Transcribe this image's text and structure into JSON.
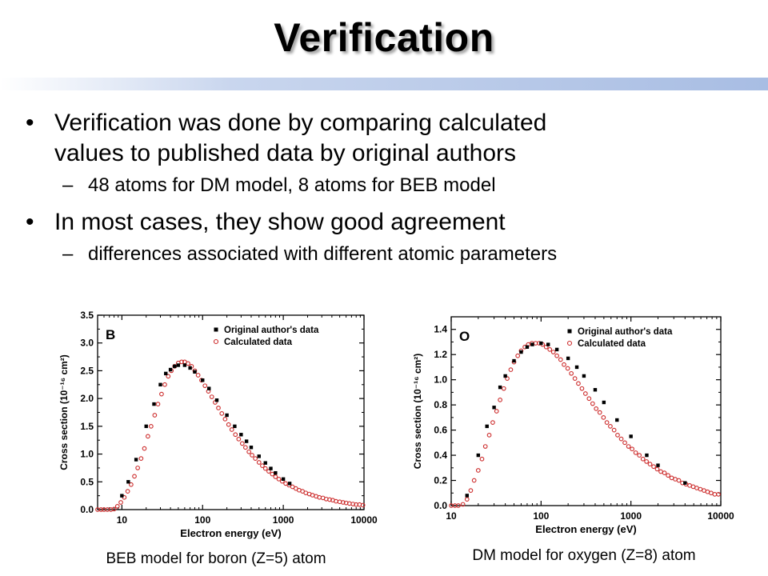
{
  "slide": {
    "title": "Verification",
    "bullets": [
      {
        "text": "Verification was done by comparing calculated values to published data by original authors",
        "line1": "Verification was done by comparing calculated",
        "line2": "values to published data by original authors",
        "sub": "48 atoms for DM model, 8 atoms for BEB model"
      },
      {
        "text": "In most cases, they show good agreement",
        "sub": "differences associated with different atomic parameters"
      }
    ],
    "sub_marker": "–",
    "captions": [
      "BEB model for boron (Z=5) atom",
      "DM model for oxygen (Z=8) atom"
    ]
  },
  "colors": {
    "original": "#000000",
    "calculated": "#cc2a2a",
    "title_bar": "#a8bde3"
  },
  "chart_data": [
    {
      "type": "scatter",
      "panel_label": "B",
      "xscale": "log",
      "xlim": [
        5,
        10000
      ],
      "ylim": [
        0,
        3.5
      ],
      "xticks": [
        10,
        100,
        1000,
        10000
      ],
      "xticklabels": [
        "10",
        "100",
        "1000",
        "10000"
      ],
      "yticks": [
        0,
        0.5,
        1.0,
        1.5,
        2.0,
        2.5,
        3.0,
        3.5
      ],
      "yticklabels": [
        "0.0",
        "0.5",
        "1.0",
        "1.5",
        "2.0",
        "2.5",
        "3.0",
        "3.5"
      ],
      "xlabel": "Electron energy (eV)",
      "ylabel": "Cross section (10⁻¹⁶ cm²)",
      "legend": "top-right",
      "series": [
        {
          "name": "Original author's data",
          "marker": "square",
          "x": [
            10,
            12,
            15,
            20,
            25,
            30,
            35,
            40,
            45,
            50,
            60,
            70,
            80,
            100,
            120,
            150,
            200,
            250,
            300,
            350,
            400,
            500,
            600,
            700,
            800,
            1000,
            1200
          ],
          "y": [
            0.25,
            0.5,
            0.9,
            1.5,
            1.9,
            2.25,
            2.45,
            2.52,
            2.58,
            2.6,
            2.6,
            2.55,
            2.48,
            2.33,
            2.18,
            1.97,
            1.7,
            1.5,
            1.35,
            1.23,
            1.12,
            0.96,
            0.84,
            0.74,
            0.66,
            0.55,
            0.47
          ]
        },
        {
          "name": "Calculated data",
          "marker": "circle",
          "x": [
            5,
            5.5,
            6,
            6.6,
            7.3,
            8,
            8.8,
            9.7,
            10.7,
            11.8,
            13,
            14.3,
            15.7,
            17.3,
            19,
            21,
            23,
            25.5,
            28,
            31,
            34,
            37.5,
            41,
            45,
            50,
            55,
            60,
            66,
            73,
            80,
            88,
            97,
            107,
            118,
            130,
            143,
            157,
            173,
            190,
            210,
            230,
            255,
            280,
            310,
            340,
            375,
            410,
            450,
            500,
            550,
            600,
            660,
            730,
            800,
            880,
            970,
            1070,
            1180,
            1300,
            1430,
            1570,
            1730,
            1900,
            2100,
            2300,
            2550,
            2800,
            3100,
            3400,
            3750,
            4100,
            4500,
            5000,
            5500,
            6000,
            6600,
            7300,
            8000,
            8800,
            9700
          ],
          "y": [
            0,
            0,
            0,
            0,
            0,
            0.01,
            0.06,
            0.13,
            0.22,
            0.33,
            0.45,
            0.6,
            0.75,
            0.92,
            1.1,
            1.32,
            1.5,
            1.7,
            1.9,
            2.08,
            2.25,
            2.4,
            2.5,
            2.58,
            2.64,
            2.66,
            2.66,
            2.63,
            2.58,
            2.5,
            2.42,
            2.33,
            2.23,
            2.13,
            2.03,
            1.93,
            1.83,
            1.73,
            1.63,
            1.53,
            1.44,
            1.35,
            1.27,
            1.19,
            1.12,
            1.04,
            0.98,
            0.92,
            0.85,
            0.79,
            0.74,
            0.69,
            0.64,
            0.59,
            0.55,
            0.51,
            0.47,
            0.44,
            0.41,
            0.38,
            0.35,
            0.33,
            0.3,
            0.28,
            0.26,
            0.24,
            0.22,
            0.21,
            0.19,
            0.18,
            0.17,
            0.15,
            0.14,
            0.13,
            0.12,
            0.11,
            0.1,
            0.09,
            0.09,
            0.08
          ]
        }
      ]
    },
    {
      "type": "scatter",
      "panel_label": "O",
      "xscale": "log",
      "xlim": [
        10,
        10000
      ],
      "ylim": [
        0,
        1.5
      ],
      "xticks": [
        10,
        100,
        1000,
        10000
      ],
      "xticklabels": [
        "10",
        "100",
        "1000",
        "10000"
      ],
      "yticks": [
        0,
        0.2,
        0.4,
        0.6,
        0.8,
        1.0,
        1.2,
        1.4
      ],
      "yticklabels": [
        "0.0",
        "0.2",
        "0.4",
        "0.6",
        "0.8",
        "1.0",
        "1.2",
        "1.4"
      ],
      "xlabel": "Electron energy (eV)",
      "ylabel": "Cross section (10⁻¹⁶ cm²)",
      "legend": "top-right",
      "series": [
        {
          "name": "Original author's data",
          "marker": "square",
          "x": [
            15,
            20,
            25,
            30,
            35,
            40,
            50,
            60,
            70,
            80,
            100,
            120,
            150,
            200,
            250,
            300,
            400,
            500,
            700,
            1000,
            1500,
            2000,
            4000
          ],
          "y": [
            0.08,
            0.4,
            0.63,
            0.78,
            0.94,
            1.03,
            1.15,
            1.22,
            1.26,
            1.28,
            1.29,
            1.28,
            1.24,
            1.17,
            1.1,
            1.03,
            0.92,
            0.82,
            0.68,
            0.55,
            0.4,
            0.32,
            0.18
          ]
        },
        {
          "name": "Calculated data",
          "marker": "circle",
          "x": [
            10,
            11,
            12,
            13.5,
            15,
            16.5,
            18,
            20,
            22,
            24,
            26.5,
            29,
            32,
            35,
            38.5,
            42,
            46,
            50,
            55,
            60,
            66,
            72,
            79,
            87,
            95,
            104,
            114,
            125,
            137,
            150,
            165,
            180,
            198,
            217,
            238,
            260,
            285,
            312,
            342,
            375,
            410,
            450,
            495,
            540,
            590,
            650,
            710,
            780,
            855,
            940,
            1030,
            1130,
            1240,
            1360,
            1490,
            1630,
            1790,
            1960,
            2150,
            2360,
            2590,
            2840,
            3110,
            3410,
            3740,
            4100,
            4500,
            4930,
            5400,
            5920,
            6500,
            7120,
            7800,
            8560,
            9400
          ],
          "y": [
            0,
            0,
            0,
            0.01,
            0.05,
            0.12,
            0.2,
            0.28,
            0.37,
            0.47,
            0.56,
            0.66,
            0.75,
            0.84,
            0.93,
            1.01,
            1.08,
            1.14,
            1.19,
            1.23,
            1.26,
            1.28,
            1.29,
            1.29,
            1.29,
            1.28,
            1.26,
            1.24,
            1.22,
            1.19,
            1.16,
            1.12,
            1.09,
            1.05,
            1.01,
            0.97,
            0.93,
            0.89,
            0.85,
            0.81,
            0.77,
            0.74,
            0.7,
            0.66,
            0.63,
            0.6,
            0.56,
            0.53,
            0.5,
            0.47,
            0.45,
            0.42,
            0.4,
            0.37,
            0.35,
            0.33,
            0.31,
            0.29,
            0.27,
            0.26,
            0.24,
            0.22,
            0.21,
            0.2,
            0.18,
            0.17,
            0.16,
            0.15,
            0.14,
            0.13,
            0.12,
            0.11,
            0.1,
            0.09,
            0.09
          ]
        }
      ]
    }
  ]
}
